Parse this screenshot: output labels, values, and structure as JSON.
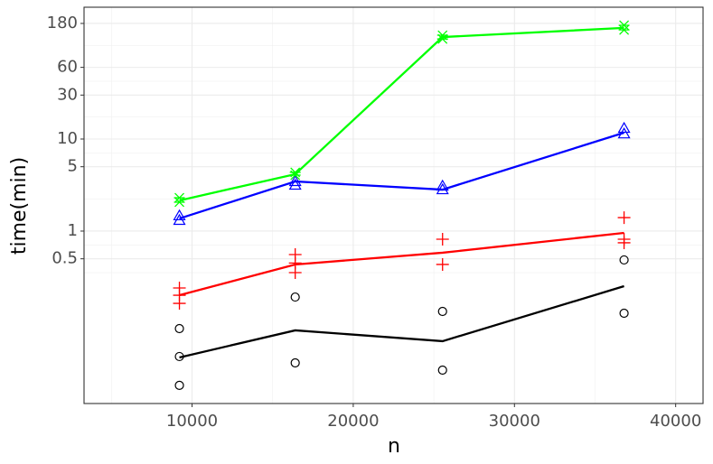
{
  "chart_data": {
    "type": "line",
    "x_label": "n",
    "y_label": "time(min)",
    "x": [
      9216,
      16400,
      25540,
      36800
    ],
    "xlim": [
      3300,
      41700
    ],
    "xticks": [
      10000,
      20000,
      30000,
      40000
    ],
    "ylim": [
      0.0134,
      270
    ],
    "yticks": [
      0.5,
      1,
      5,
      10,
      30,
      60,
      180
    ],
    "y_log": true,
    "grid": true,
    "series": [
      {
        "color": "#000000",
        "shape": "circle",
        "values": [
          0.0424,
          0.0835,
          0.0637,
          0.252
        ],
        "point_x": [
          9216,
          9216,
          9216,
          16400,
          16400,
          25540,
          25540,
          36800,
          36800
        ],
        "point_values": [
          0.0873,
          0.0434,
          0.0211,
          0.192,
          0.037,
          0.134,
          0.0309,
          0.486,
          0.128
        ]
      },
      {
        "color": "#ff0000",
        "shape": "plus",
        "values": [
          0.201,
          0.434,
          0.582,
          0.955
        ],
        "point_x": [
          9216,
          9216,
          9216,
          16400,
          16400,
          16400,
          25540,
          25540,
          36800,
          36800,
          36800
        ],
        "point_values": [
          0.241,
          0.201,
          0.164,
          0.556,
          0.45,
          0.354,
          0.816,
          0.434,
          1.4,
          0.816,
          0.746
        ]
      },
      {
        "color": "#0000ff",
        "shape": "triangle",
        "values": [
          1.37,
          3.46,
          2.82,
          11.7
        ],
        "point_x": [
          9216,
          9216,
          16400,
          16400,
          25540,
          25540,
          36800,
          36800
        ],
        "point_values": [
          1.47,
          1.31,
          3.46,
          3.16,
          3.09,
          2.82,
          13.1,
          11.4
        ]
      },
      {
        "color": "#00ff00",
        "shape": "asterisk",
        "values": [
          2.15,
          4.15,
          128,
          161
        ],
        "point_x": [
          9216,
          9216,
          16400,
          16400,
          25540,
          25540,
          36800,
          36800
        ],
        "point_values": [
          2.3,
          2.06,
          4.34,
          4.05,
          134,
          122,
          172,
          153
        ]
      }
    ]
  }
}
